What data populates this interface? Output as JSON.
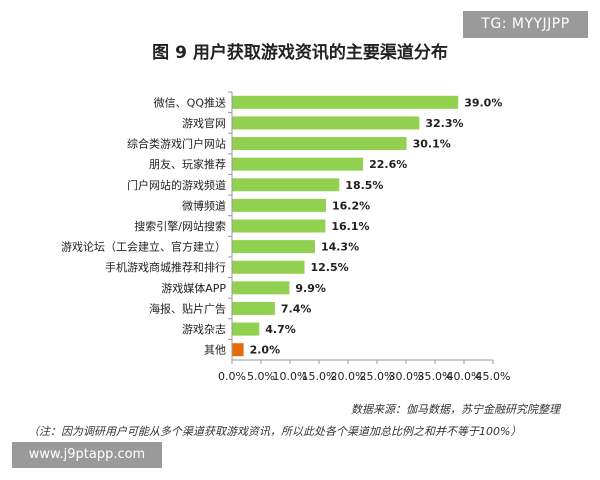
{
  "watermark_top": "TG: MYYJJPP",
  "watermark_bottom": "www.j9ptapp.com",
  "colors": {
    "bar": "#92d050",
    "highlight_bar": "#e36c0a",
    "axis": "#999999"
  },
  "chart_data": {
    "type": "bar",
    "orientation": "horizontal",
    "title": "图 9 用户获取游戏资讯的主要渠道分布",
    "categories": [
      "微信、QQ推送",
      "游戏官网",
      "综合类游戏门户网站",
      "朋友、玩家推荐",
      "门户网站的游戏频道",
      "微博频道",
      "搜索引擎/网站搜索",
      "游戏论坛（工会建立、官方建立）",
      "手机游戏商城推荐和排行",
      "游戏媒体APP",
      "海报、贴片广告",
      "游戏杂志",
      "其他"
    ],
    "values": [
      39.0,
      32.3,
      30.1,
      22.6,
      18.5,
      16.2,
      16.1,
      14.3,
      12.5,
      9.9,
      7.4,
      4.7,
      2.0
    ],
    "value_labels": [
      "39.0%",
      "32.3%",
      "30.1%",
      "22.6%",
      "18.5%",
      "16.2%",
      "16.1%",
      "14.3%",
      "12.5%",
      "9.9%",
      "7.4%",
      "4.7%",
      "2.0%"
    ],
    "highlighted_category": "其他",
    "xlim": [
      0,
      45
    ],
    "xticks": [
      "0.0%",
      "5.0%",
      "10.0%",
      "15.0%",
      "20.0%",
      "25.0%",
      "30.0%",
      "35.0%",
      "40.0%",
      "45.0%"
    ],
    "grid": false,
    "legend": "none"
  },
  "source": "数据来源：伽马数据，苏宁金融研究院整理",
  "note": "（注：因为调研用户可能从多个渠道获取游戏资讯，所以此处各个渠道加总比例之和并不等于100%）"
}
